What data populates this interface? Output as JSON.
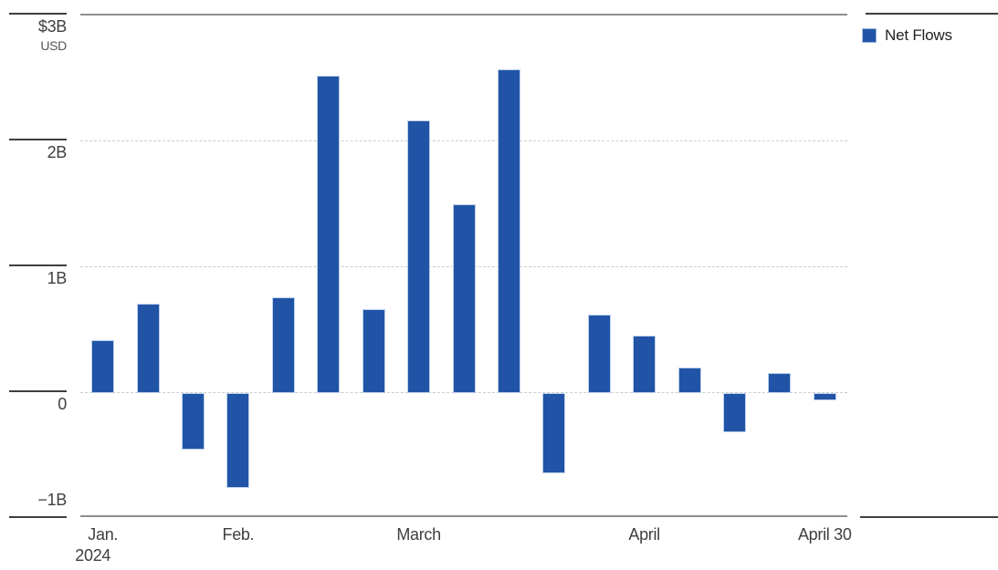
{
  "page": {
    "background": "#ffffff"
  },
  "chart_data": {
    "type": "bar",
    "title": "",
    "unit": "USD billions",
    "legend": {
      "position": "top-right",
      "items": [
        {
          "label": "Net Flows",
          "color": "#2154a6"
        }
      ]
    },
    "y_axis": {
      "ylim": [
        -1,
        3
      ],
      "ticks": [
        {
          "value": 3,
          "label": "$3B",
          "sublabel": "USD",
          "grid": false
        },
        {
          "value": 2,
          "label": "2B",
          "grid": true
        },
        {
          "value": 1,
          "label": "1B",
          "grid": true
        },
        {
          "value": 0,
          "label": "0",
          "grid": true
        },
        {
          "value": -1,
          "label": "−1B",
          "grid": false,
          "label_above": true
        }
      ]
    },
    "x_axis": {
      "ticks": [
        {
          "bar_index": 0,
          "label": "Jan.",
          "sublabel": "2024"
        },
        {
          "bar_index": 3,
          "label": "Feb."
        },
        {
          "bar_index": 7,
          "label": "March"
        },
        {
          "bar_index": 12,
          "label": "April"
        },
        {
          "bar_index": 16,
          "label": "April 30"
        }
      ]
    },
    "series": [
      {
        "name": "Net Flows",
        "color": "#2154a6",
        "values": [
          0.42,
          0.71,
          -0.45,
          -0.75,
          0.76,
          2.52,
          0.67,
          2.17,
          1.5,
          2.57,
          -0.64,
          0.62,
          0.46,
          0.2,
          -0.31,
          0.16,
          -0.06
        ]
      }
    ],
    "grid": "horizontal-dotted",
    "colors": {
      "bar": "#2154a6",
      "bar_stroke": "#bdd0ec",
      "axis_dark": "#3f3f3f",
      "axis_gray": "#8e8e8e",
      "gridline": "#cccccc",
      "text": "#3f3f3f"
    }
  }
}
